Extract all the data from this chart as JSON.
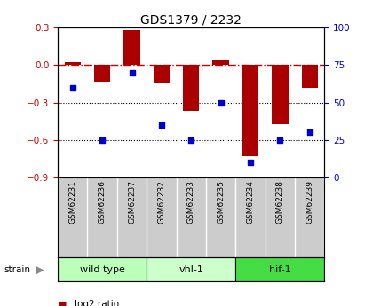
{
  "title": "GDS1379 / 2232",
  "samples": [
    "GSM62231",
    "GSM62236",
    "GSM62237",
    "GSM62232",
    "GSM62233",
    "GSM62235",
    "GSM62234",
    "GSM62238",
    "GSM62239"
  ],
  "log2_ratio": [
    0.02,
    -0.13,
    0.28,
    -0.15,
    -0.37,
    0.04,
    -0.73,
    -0.47,
    -0.18
  ],
  "percentile": [
    60,
    25,
    70,
    35,
    25,
    50,
    10,
    25,
    30
  ],
  "groups": [
    {
      "label": "wild type",
      "start": 0,
      "end": 3,
      "color": "#bbffbb"
    },
    {
      "label": "vhl-1",
      "start": 3,
      "end": 6,
      "color": "#ccffcc"
    },
    {
      "label": "hif-1",
      "start": 6,
      "end": 9,
      "color": "#44dd44"
    }
  ],
  "ylim_left": [
    -0.9,
    0.3
  ],
  "ylim_right": [
    0,
    100
  ],
  "yticks_left": [
    -0.9,
    -0.6,
    -0.3,
    0.0,
    0.3
  ],
  "yticks_right": [
    0,
    25,
    50,
    75,
    100
  ],
  "bar_color": "#aa0000",
  "dot_color": "#0000cc",
  "hline_color": "#cc0000",
  "dotline_color": "#000000",
  "label_bg": "#cccccc",
  "bg_color": "#ffffff"
}
